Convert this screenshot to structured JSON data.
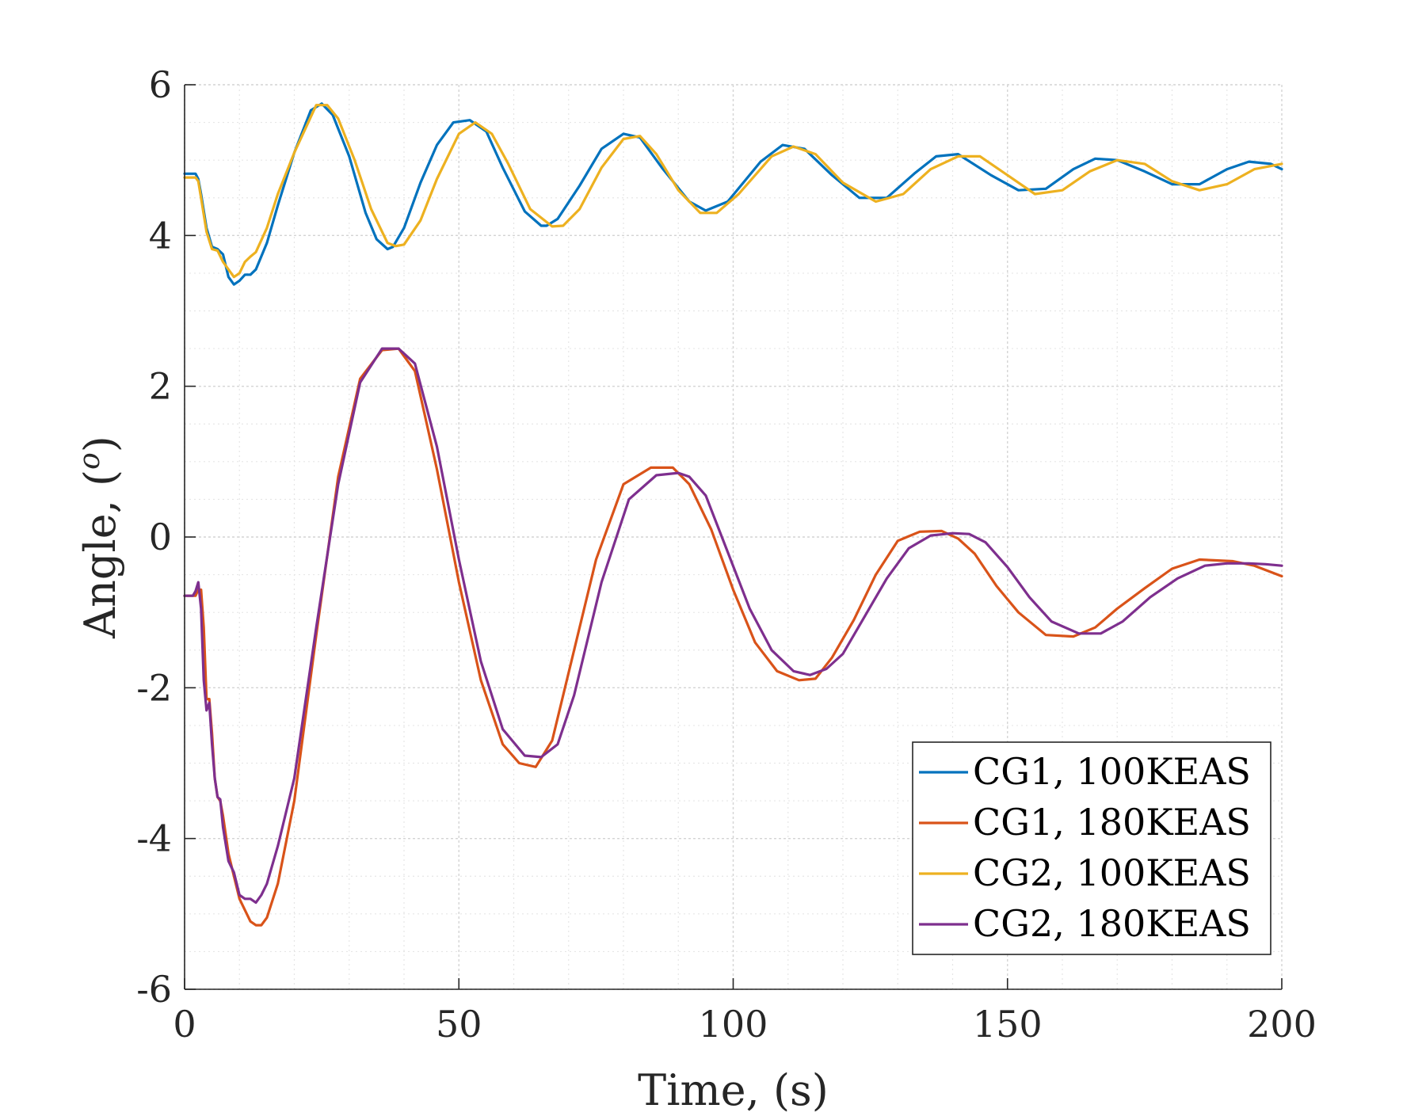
{
  "chart_data": {
    "type": "line",
    "title": "",
    "xlabel": "Time, (s)",
    "ylabel": "Angle, (",
    "ylabel_sup": "o",
    "ylabel_end": ")",
    "xlim": [
      0,
      200
    ],
    "ylim": [
      -6,
      6
    ],
    "xticks": [
      0,
      50,
      100,
      150,
      200
    ],
    "yticks": [
      -6,
      -4,
      -2,
      0,
      2,
      4,
      6
    ],
    "xtick_labels": [
      "0",
      "50",
      "100",
      "150",
      "200"
    ],
    "ytick_labels": [
      "-6",
      "-4",
      "-2",
      "0",
      "2",
      "4",
      "6"
    ],
    "grid": "on (major and minor, dotted)",
    "legend_location": "bottom-right",
    "series": [
      {
        "name": "CG1, 100KEAS",
        "color": "#0072BD",
        "x": [
          0,
          2,
          2.5,
          3,
          4,
          5,
          6,
          7,
          8,
          9,
          10,
          11,
          12,
          13,
          15,
          17,
          20,
          23,
          25,
          27,
          30,
          33,
          35,
          37,
          38,
          40,
          43,
          46,
          49,
          52,
          55,
          58,
          62,
          65,
          66,
          68,
          72,
          76,
          80,
          83,
          87,
          92,
          95,
          99,
          105,
          109,
          113,
          118,
          123,
          128,
          133,
          137,
          141,
          147,
          152,
          157,
          162,
          166,
          170,
          175,
          180,
          185,
          190,
          194,
          198,
          200
        ],
        "y": [
          4.82,
          4.82,
          4.75,
          4.55,
          4.1,
          3.85,
          3.82,
          3.75,
          3.45,
          3.35,
          3.4,
          3.48,
          3.48,
          3.55,
          3.9,
          4.4,
          5.1,
          5.66,
          5.75,
          5.6,
          5.05,
          4.3,
          3.95,
          3.82,
          3.85,
          4.1,
          4.7,
          5.2,
          5.5,
          5.53,
          5.38,
          4.9,
          4.32,
          4.13,
          4.13,
          4.22,
          4.66,
          5.15,
          5.35,
          5.3,
          4.9,
          4.45,
          4.33,
          4.45,
          4.98,
          5.2,
          5.15,
          4.8,
          4.5,
          4.5,
          4.82,
          5.05,
          5.08,
          4.8,
          4.6,
          4.62,
          4.88,
          5.02,
          5.0,
          4.85,
          4.68,
          4.68,
          4.88,
          4.98,
          4.95,
          4.88
        ]
      },
      {
        "name": "CG1, 180KEAS",
        "color": "#D95319",
        "x": [
          0,
          2,
          2.5,
          3,
          3.5,
          4,
          4.5,
          5,
          5.5,
          6,
          6.5,
          7,
          8,
          9,
          10,
          11,
          12,
          13,
          14,
          15,
          17,
          20,
          24,
          28,
          32,
          36,
          39,
          42,
          46,
          50,
          54,
          58,
          61,
          64,
          67,
          70,
          75,
          80,
          85,
          89,
          92,
          96,
          100,
          104,
          108,
          112,
          115,
          118,
          122,
          126,
          130,
          134,
          138,
          141,
          144,
          148,
          152,
          157,
          162,
          166,
          170,
          175,
          180,
          185,
          191,
          195,
          200
        ],
        "y": [
          -0.78,
          -0.78,
          -0.7,
          -0.7,
          -1.2,
          -2.15,
          -2.15,
          -2.6,
          -3.2,
          -3.45,
          -3.5,
          -3.7,
          -4.2,
          -4.5,
          -4.8,
          -4.95,
          -5.1,
          -5.15,
          -5.15,
          -5.05,
          -4.6,
          -3.5,
          -1.3,
          0.8,
          2.1,
          2.48,
          2.5,
          2.2,
          0.9,
          -0.6,
          -1.9,
          -2.75,
          -3.0,
          -3.05,
          -2.7,
          -1.8,
          -0.3,
          0.7,
          0.92,
          0.92,
          0.7,
          0.1,
          -0.7,
          -1.4,
          -1.78,
          -1.9,
          -1.88,
          -1.6,
          -1.1,
          -0.5,
          -0.05,
          0.07,
          0.08,
          -0.02,
          -0.22,
          -0.65,
          -1.0,
          -1.3,
          -1.32,
          -1.2,
          -0.95,
          -0.68,
          -0.42,
          -0.3,
          -0.32,
          -0.38,
          -0.52
        ]
      },
      {
        "name": "CG2, 100KEAS",
        "color": "#EDB120",
        "x": [
          0,
          2,
          2.5,
          3,
          4,
          5,
          6,
          7,
          8,
          9,
          10,
          11,
          12,
          13,
          15,
          17,
          20,
          24,
          26,
          28,
          31,
          34,
          37,
          38.5,
          40,
          43,
          46,
          50,
          53,
          56,
          59,
          63,
          67,
          69,
          72,
          76,
          80,
          83,
          86,
          90,
          94,
          97,
          101,
          107,
          111,
          115,
          120,
          126,
          131,
          136,
          141,
          145,
          150,
          155,
          160,
          165,
          170,
          175,
          180,
          185,
          190,
          195,
          200
        ],
        "y": [
          4.77,
          4.77,
          4.72,
          4.5,
          4.05,
          3.82,
          3.8,
          3.65,
          3.55,
          3.45,
          3.5,
          3.65,
          3.72,
          3.78,
          4.1,
          4.55,
          5.1,
          5.73,
          5.73,
          5.55,
          5.0,
          4.35,
          3.9,
          3.86,
          3.88,
          4.2,
          4.75,
          5.35,
          5.5,
          5.35,
          4.95,
          4.35,
          4.12,
          4.13,
          4.35,
          4.9,
          5.28,
          5.32,
          5.08,
          4.6,
          4.3,
          4.3,
          4.55,
          5.05,
          5.18,
          5.08,
          4.7,
          4.45,
          4.55,
          4.88,
          5.05,
          5.05,
          4.8,
          4.55,
          4.6,
          4.85,
          5.0,
          4.95,
          4.72,
          4.6,
          4.68,
          4.88,
          4.95
        ]
      },
      {
        "name": "CG2, 180KEAS",
        "color": "#7E2F8E",
        "x": [
          0,
          1.5,
          2,
          2.5,
          3,
          3.5,
          4,
          4.5,
          5,
          5.5,
          6,
          6.5,
          7,
          8,
          9,
          10,
          11,
          12,
          13,
          14,
          15,
          17,
          20,
          24,
          28,
          32,
          36,
          39,
          42,
          46,
          50,
          54,
          58,
          62,
          65,
          68,
          71,
          76,
          81,
          86,
          90,
          92,
          95,
          99,
          103,
          107,
          111,
          114,
          117,
          120,
          124,
          128,
          132,
          136,
          140,
          143,
          146,
          150,
          154,
          158,
          163,
          167,
          171,
          176,
          181,
          186,
          190,
          194,
          197,
          200
        ],
        "y": [
          -0.78,
          -0.78,
          -0.72,
          -0.6,
          -0.95,
          -1.9,
          -2.3,
          -2.2,
          -2.75,
          -3.2,
          -3.45,
          -3.48,
          -3.85,
          -4.3,
          -4.45,
          -4.75,
          -4.8,
          -4.8,
          -4.85,
          -4.75,
          -4.6,
          -4.1,
          -3.2,
          -1.2,
          0.7,
          2.05,
          2.5,
          2.5,
          2.3,
          1.2,
          -0.3,
          -1.65,
          -2.55,
          -2.9,
          -2.92,
          -2.75,
          -2.1,
          -0.6,
          0.5,
          0.82,
          0.85,
          0.8,
          0.55,
          -0.2,
          -0.95,
          -1.5,
          -1.78,
          -1.83,
          -1.75,
          -1.55,
          -1.05,
          -0.55,
          -0.15,
          0.02,
          0.05,
          0.04,
          -0.07,
          -0.4,
          -0.8,
          -1.12,
          -1.28,
          -1.28,
          -1.12,
          -0.8,
          -0.55,
          -0.38,
          -0.35,
          -0.35,
          -0.36,
          -0.38
        ]
      }
    ]
  }
}
